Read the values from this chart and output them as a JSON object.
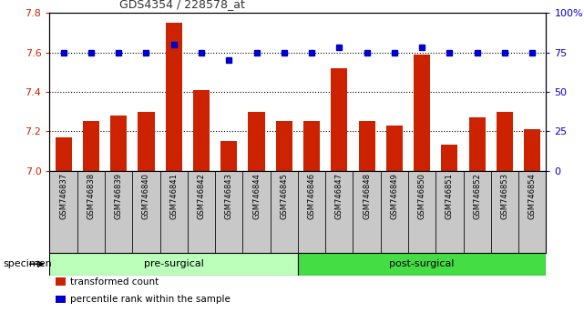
{
  "title": "GDS4354 / 228578_at",
  "samples": [
    "GSM746837",
    "GSM746838",
    "GSM746839",
    "GSM746840",
    "GSM746841",
    "GSM746842",
    "GSM746843",
    "GSM746844",
    "GSM746845",
    "GSM746846",
    "GSM746847",
    "GSM746848",
    "GSM746849",
    "GSM746850",
    "GSM746851",
    "GSM746852",
    "GSM746853",
    "GSM746854"
  ],
  "bar_values": [
    7.17,
    7.25,
    7.28,
    7.3,
    7.75,
    7.41,
    7.15,
    7.3,
    7.25,
    7.25,
    7.52,
    7.25,
    7.23,
    7.59,
    7.13,
    7.27,
    7.3,
    7.21
  ],
  "percentile_values": [
    75,
    75,
    75,
    75,
    80,
    75,
    70,
    75,
    75,
    75,
    78,
    75,
    75,
    78,
    75,
    75,
    75,
    75
  ],
  "ylim_left": [
    7.0,
    7.8
  ],
  "ylim_right": [
    0,
    100
  ],
  "yticks_left": [
    7.0,
    7.2,
    7.4,
    7.6,
    7.8
  ],
  "yticks_right": [
    0,
    25,
    50,
    75,
    100
  ],
  "ytick_labels_right": [
    "0",
    "25",
    "50",
    "75",
    "100%"
  ],
  "bar_color": "#cc2200",
  "dot_color": "#0000cc",
  "bar_width": 0.6,
  "groups": [
    {
      "label": "pre-surgical",
      "start": 0,
      "end": 9,
      "color": "#bbffbb"
    },
    {
      "label": "post-surgical",
      "start": 9,
      "end": 18,
      "color": "#44dd44"
    }
  ],
  "specimen_label": "specimen",
  "legend_items": [
    {
      "color": "#cc2200",
      "label": "transformed count"
    },
    {
      "color": "#0000cc",
      "label": "percentile rank within the sample"
    }
  ],
  "plot_bg": "#ffffff",
  "title_color": "#333333",
  "grid_lines": [
    7.2,
    7.4,
    7.6
  ],
  "tick_area_color": "#c8c8c8"
}
